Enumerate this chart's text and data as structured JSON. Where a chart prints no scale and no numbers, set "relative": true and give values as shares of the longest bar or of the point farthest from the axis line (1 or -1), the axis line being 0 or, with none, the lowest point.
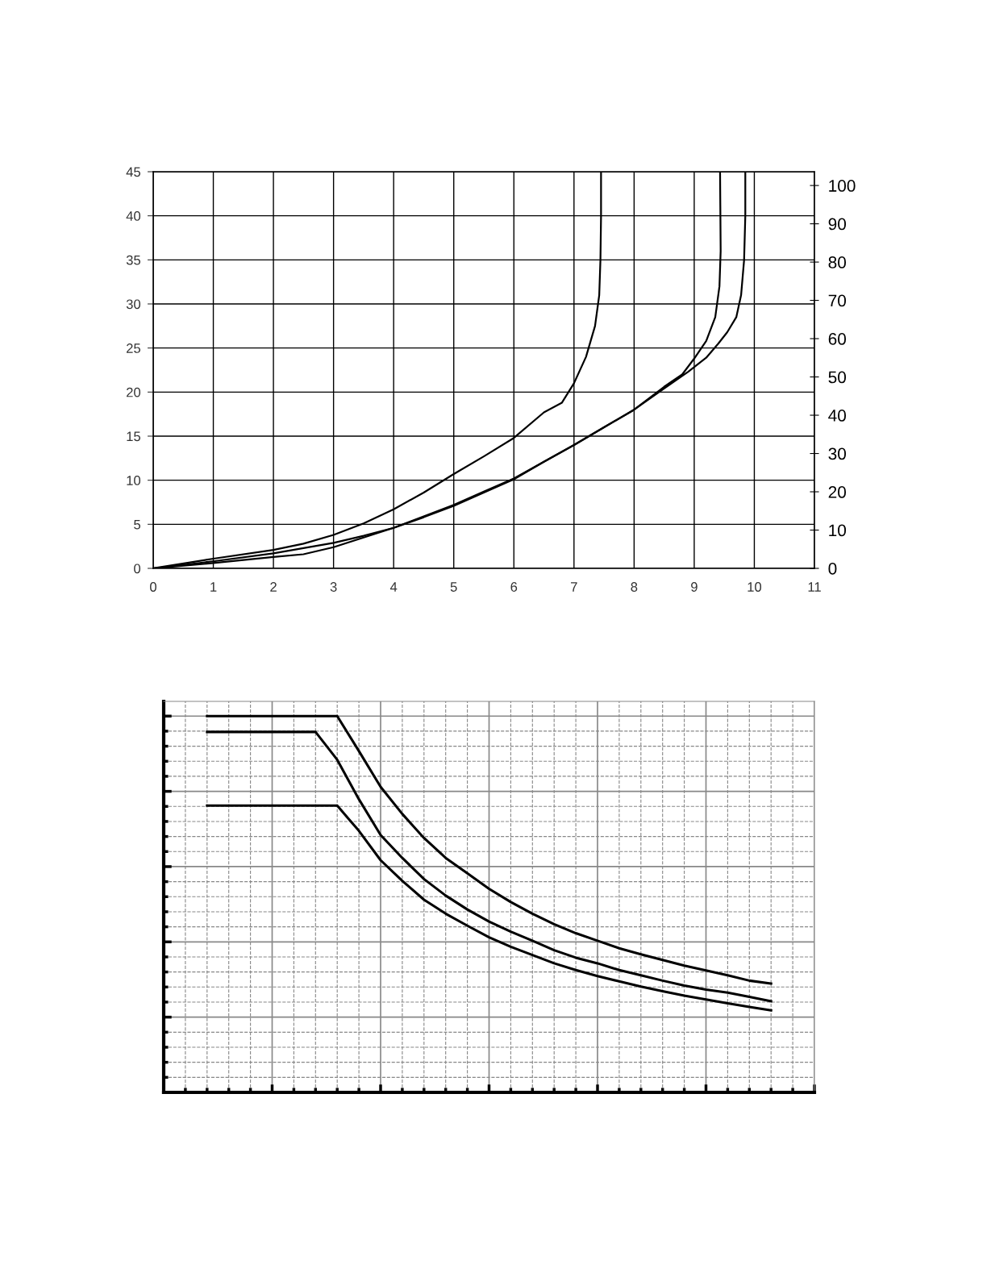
{
  "chart_data": [
    {
      "type": "line",
      "xlim": [
        0,
        11
      ],
      "xticks": [
        0,
        1,
        2,
        3,
        4,
        5,
        6,
        7,
        8,
        9,
        10,
        11
      ],
      "ylim": [
        0,
        45
      ],
      "yticks": [
        0,
        5,
        10,
        15,
        20,
        25,
        30,
        35,
        40,
        45
      ],
      "y2lim": [
        0,
        103.6
      ],
      "y2ticks": [
        0,
        10,
        20,
        30,
        40,
        50,
        60,
        70,
        80,
        90,
        100
      ],
      "grid": true,
      "marker": "none",
      "line_style": "solid",
      "series": [
        {
          "color": "#000000",
          "x": [
            0,
            1,
            2,
            2.5,
            3,
            3.5,
            4,
            4.5,
            5,
            5.5,
            6,
            6.5,
            6.8,
            7,
            7.2,
            7.35,
            7.42,
            7.44,
            7.45,
            7.45
          ],
          "values": [
            0,
            1.1,
            2.1,
            2.8,
            3.8,
            5.1,
            6.7,
            8.6,
            10.7,
            12.7,
            14.8,
            17.7,
            18.8,
            21,
            24,
            27.5,
            31,
            35,
            40,
            45
          ]
        },
        {
          "color": "#000000",
          "x": [
            0,
            1,
            2,
            3,
            3.5,
            4,
            4.5,
            5,
            5.5,
            6,
            6.5,
            7,
            7.5,
            8,
            8.5,
            8.8,
            9,
            9.2,
            9.35,
            9.42,
            9.44,
            9.43
          ],
          "values": [
            0,
            0.8,
            1.7,
            2.9,
            3.7,
            4.6,
            5.8,
            7.1,
            8.6,
            10.1,
            12.1,
            14,
            16,
            18,
            20.6,
            22,
            23.8,
            25.8,
            28.5,
            32,
            36,
            45
          ]
        },
        {
          "color": "#000000",
          "x": [
            0,
            1,
            2,
            2.5,
            3,
            3.5,
            4,
            4.5,
            5,
            5.5,
            6,
            6.5,
            7,
            7.5,
            8,
            8.5,
            8.9,
            9.2,
            9.4,
            9.55,
            9.7,
            9.78,
            9.83,
            9.85,
            9.85
          ],
          "values": [
            0,
            0.6,
            1.3,
            1.6,
            2.4,
            3.5,
            4.6,
            5.9,
            7.2,
            8.7,
            10.2,
            12.1,
            14,
            16,
            18,
            20.4,
            22.3,
            23.9,
            25.5,
            26.8,
            28.5,
            31,
            35,
            40,
            45
          ]
        }
      ]
    },
    {
      "type": "line",
      "relative": true,
      "grid": true,
      "marker": "none",
      "line_style": "solid",
      "tick_labels": false,
      "categories": [
        null,
        null,
        null,
        null,
        null,
        null,
        null,
        null,
        null,
        null,
        null,
        null,
        null,
        null,
        null,
        null,
        null,
        null,
        null,
        null,
        null,
        null,
        null,
        null,
        null,
        null,
        null,
        null,
        null,
        null,
        null
      ],
      "series": [
        {
          "color": "#000000",
          "values": [
            null,
            null,
            1.0,
            1.0,
            1.0,
            1.0,
            1.0,
            1.0,
            1.0,
            0.907,
            0.812,
            0.74,
            0.676,
            0.623,
            0.582,
            0.541,
            0.506,
            0.475,
            0.447,
            0.423,
            0.403,
            0.383,
            0.367,
            0.352,
            0.337,
            0.324,
            0.311,
            0.297,
            0.289,
            null,
            null
          ]
        },
        {
          "color": "#000000",
          "values": [
            null,
            null,
            0.958,
            0.958,
            0.958,
            0.958,
            0.958,
            0.958,
            0.884,
            0.779,
            0.684,
            0.623,
            0.567,
            0.523,
            0.486,
            0.454,
            0.427,
            0.403,
            0.378,
            0.358,
            0.343,
            0.325,
            0.311,
            0.297,
            0.284,
            0.273,
            0.265,
            0.254,
            0.242,
            null,
            null
          ]
        },
        {
          "color": "#000000",
          "values": [
            null,
            null,
            0.762,
            0.762,
            0.762,
            0.762,
            0.762,
            0.762,
            0.762,
            0.695,
            0.617,
            0.562,
            0.512,
            0.475,
            0.443,
            0.412,
            0.387,
            0.365,
            0.343,
            0.325,
            0.309,
            0.295,
            0.281,
            0.269,
            0.257,
            0.247,
            0.237,
            0.227,
            0.218,
            null,
            null
          ]
        }
      ]
    }
  ]
}
